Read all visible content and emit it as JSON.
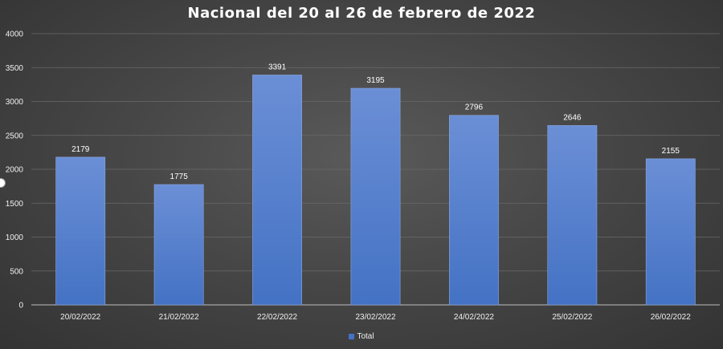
{
  "chart_data": {
    "type": "bar",
    "title": "Nacional del 20 al 26 de febrero de 2022",
    "categories": [
      "20/02/2022",
      "21/02/2022",
      "22/02/2022",
      "23/02/2022",
      "24/02/2022",
      "25/02/2022",
      "26/02/2022"
    ],
    "series": [
      {
        "name": "Total",
        "values": [
          2179,
          1775,
          3391,
          3195,
          2796,
          2646,
          2155
        ],
        "color": "#4472c4"
      }
    ],
    "ylim": [
      0,
      4000
    ],
    "yticks": [
      0,
      500,
      1000,
      1500,
      2000,
      2500,
      3000,
      3500,
      4000
    ],
    "grid": true,
    "legend": "bottom"
  }
}
